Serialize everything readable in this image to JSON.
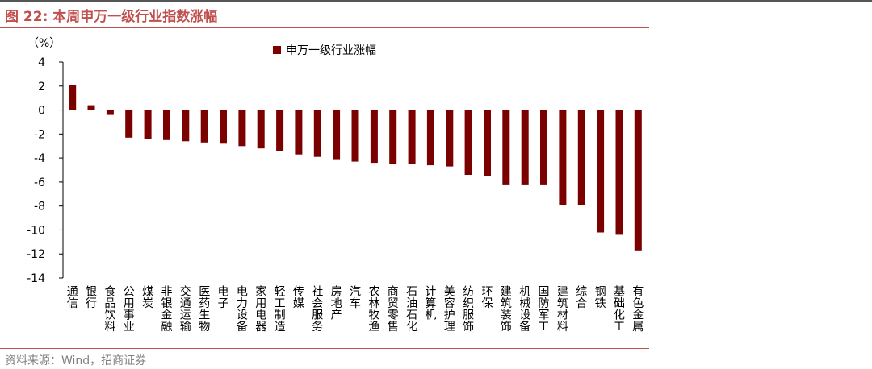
{
  "header": {
    "title": "图 22:  本周申万一级行业指数涨幅"
  },
  "footer": {
    "source": "资料来源：Wind，招商证券"
  },
  "chart_data": {
    "type": "bar",
    "title": "本周申万一级行业指数涨幅",
    "ylabel": "（%）",
    "xlabel": "",
    "ylim": [
      -14,
      4
    ],
    "yticks": [
      4,
      2,
      0,
      -2,
      -4,
      -6,
      -8,
      -10,
      -12,
      -14
    ],
    "grid": false,
    "legend": "top-center",
    "bar_color": "#7b0000",
    "series": [
      {
        "name": "申万一级行业涨幅",
        "values": [
          2.1,
          0.4,
          -0.4,
          -2.3,
          -2.4,
          -2.5,
          -2.6,
          -2.7,
          -2.8,
          -3.0,
          -3.2,
          -3.4,
          -3.7,
          -3.9,
          -4.1,
          -4.3,
          -4.4,
          -4.5,
          -4.5,
          -4.6,
          -4.7,
          -5.4,
          -5.5,
          -6.2,
          -6.2,
          -6.2,
          -7.9,
          -7.9,
          -10.2,
          -10.4,
          -11.7
        ]
      }
    ],
    "categories": [
      "通信",
      "银行",
      "食品饮料",
      "公用事业",
      "煤炭",
      "非银金融",
      "交通运输",
      "医药生物",
      "电子",
      "电力设备",
      "家用电器",
      "轻工制造",
      "传媒",
      "社会服务",
      "房地产",
      "汽车",
      "农林牧渔",
      "商贸零售",
      "石油石化",
      "计算机",
      "美容护理",
      "纺织服饰",
      "环保",
      "建筑装饰",
      "机械设备",
      "国防军工",
      "建筑材料",
      "综合",
      "钢铁",
      "基础化工",
      "有色金属"
    ]
  }
}
